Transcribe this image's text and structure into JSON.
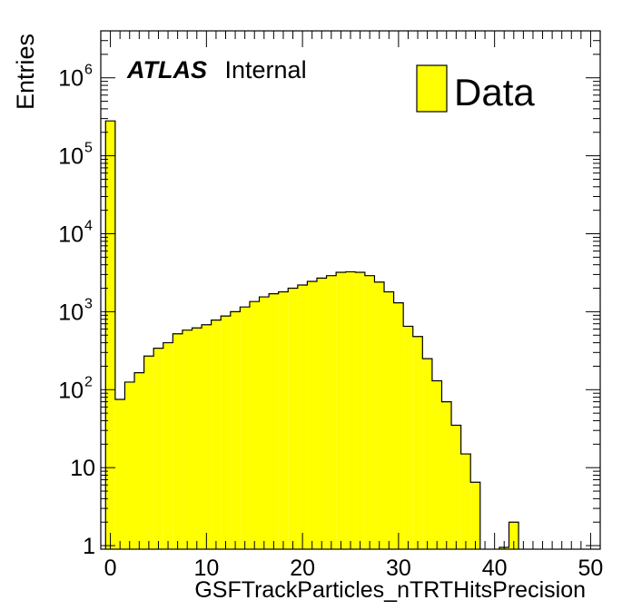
{
  "chart_data": {
    "type": "bar",
    "xlabel": "GSFTrackParticles_nTRTHitsPrecision",
    "ylabel": "Entries",
    "xlim": [
      -1,
      51
    ],
    "ylim": [
      0.9,
      4000000
    ],
    "yscale": "log",
    "bin_width": 1,
    "x_tick_labels": [
      "0",
      "10",
      "20",
      "30",
      "40",
      "50"
    ],
    "y_tick_labels": [
      {
        "value": 1,
        "base": "1",
        "exp": ""
      },
      {
        "value": 10,
        "base": "10",
        "exp": ""
      },
      {
        "value": 100,
        "base": "10",
        "exp": "2"
      },
      {
        "value": 1000,
        "base": "10",
        "exp": "3"
      },
      {
        "value": 10000,
        "base": "10",
        "exp": "4"
      },
      {
        "value": 100000,
        "base": "10",
        "exp": "5"
      },
      {
        "value": 1000000,
        "base": "10",
        "exp": "6"
      }
    ],
    "annotation": {
      "bold": "ATLAS",
      "normal": "Internal"
    },
    "legend_position": "top-right",
    "series": [
      {
        "name": "Data",
        "color": "#ffff00",
        "bin_low_edges": [
          -0.5,
          0.5,
          1.5,
          2.5,
          3.5,
          4.5,
          5.5,
          6.5,
          7.5,
          8.5,
          9.5,
          10.5,
          11.5,
          12.5,
          13.5,
          14.5,
          15.5,
          16.5,
          17.5,
          18.5,
          19.5,
          20.5,
          21.5,
          22.5,
          23.5,
          24.5,
          25.5,
          26.5,
          27.5,
          28.5,
          29.5,
          30.5,
          31.5,
          32.5,
          33.5,
          34.5,
          35.5,
          36.5,
          37.5,
          38.5,
          39.5,
          40.5,
          41.5,
          42.5,
          43.5,
          44.5,
          45.5,
          46.5,
          47.5,
          48.5,
          49.5
        ],
        "values": [
          280000,
          75,
          125,
          165,
          270,
          340,
          400,
          520,
          580,
          620,
          680,
          780,
          880,
          1000,
          1150,
          1350,
          1550,
          1700,
          1800,
          2000,
          2200,
          2450,
          2700,
          2900,
          3200,
          3250,
          3200,
          2900,
          2400,
          1800,
          1300,
          650,
          480,
          250,
          130,
          70,
          35,
          15,
          6.5,
          0,
          0,
          0.95,
          2,
          0,
          0,
          0,
          0,
          0,
          0,
          0,
          0
        ]
      }
    ]
  }
}
